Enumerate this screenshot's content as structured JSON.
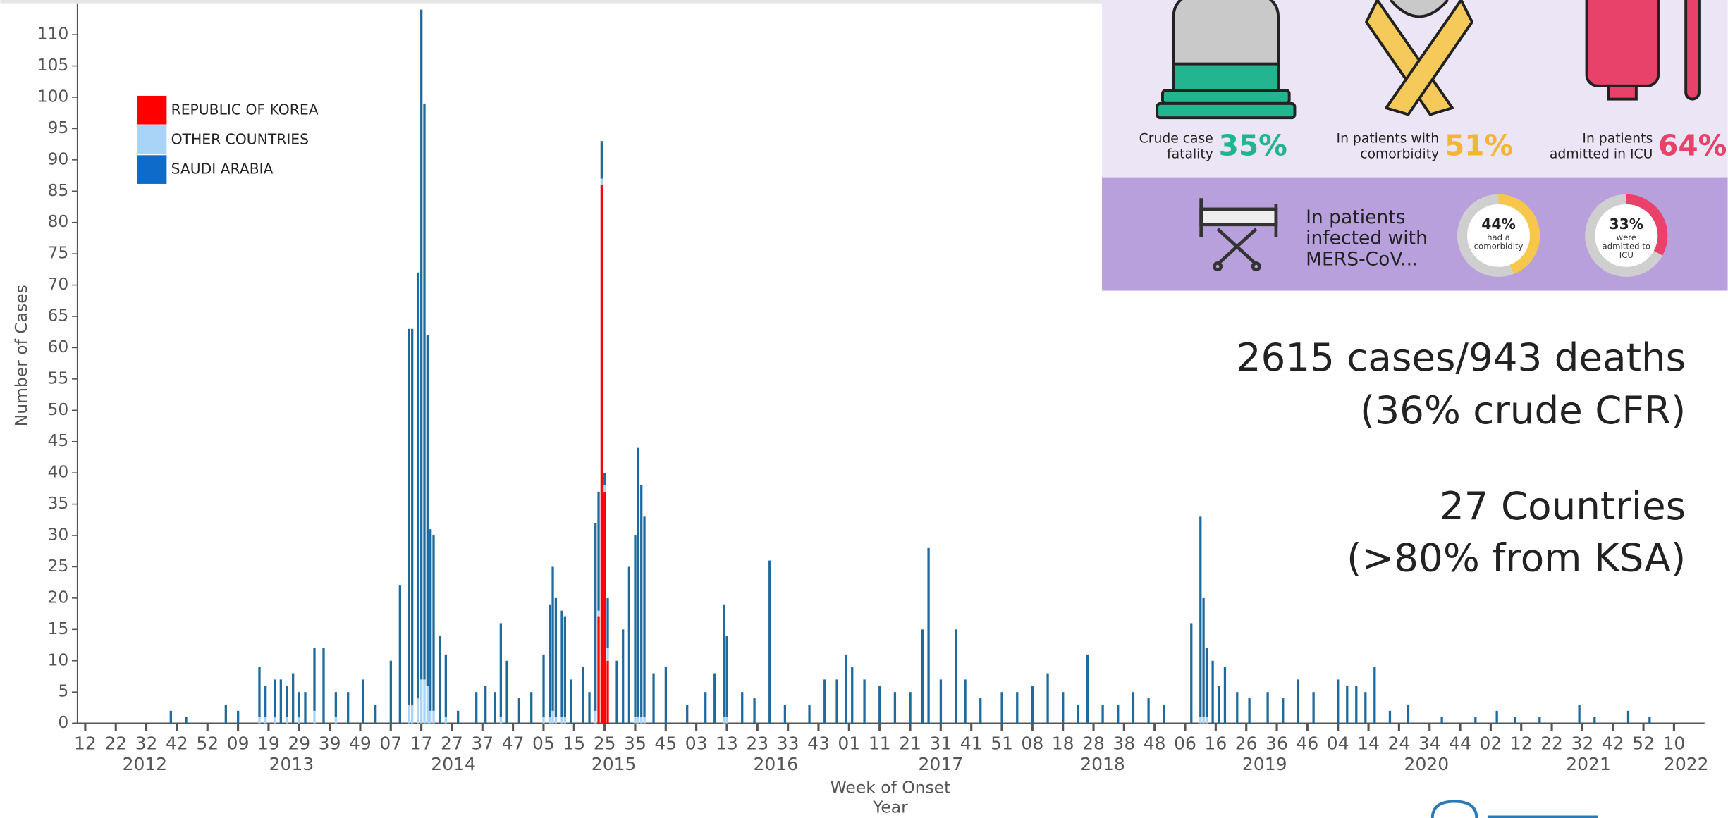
{
  "chart_data": {
    "type": "bar",
    "stacked": true,
    "y_label": "Number of Cases",
    "x_label": "Week of Onset",
    "x_label2": "Year",
    "ylim": [
      0,
      115
    ],
    "yticks": [
      0,
      5,
      10,
      15,
      20,
      25,
      30,
      35,
      40,
      45,
      50,
      55,
      60,
      65,
      70,
      75,
      80,
      85,
      90,
      95,
      100,
      105,
      110
    ],
    "xlim": [
      -4,
      530
    ],
    "xticks": [
      {
        "value": 0,
        "label": "12"
      },
      {
        "value": 10,
        "label": "22"
      },
      {
        "value": 20,
        "label": "32"
      },
      {
        "value": 30,
        "label": "42"
      },
      {
        "value": 40,
        "label": "52"
      },
      {
        "value": 50,
        "label": "09"
      },
      {
        "value": 60,
        "label": "19"
      },
      {
        "value": 70,
        "label": "29"
      },
      {
        "value": 80,
        "label": "39"
      },
      {
        "value": 90,
        "label": "49"
      },
      {
        "value": 100,
        "label": "07"
      },
      {
        "value": 110,
        "label": "17"
      },
      {
        "value": 120,
        "label": "27"
      },
      {
        "value": 130,
        "label": "37"
      },
      {
        "value": 140,
        "label": "47"
      },
      {
        "value": 150,
        "label": "05"
      },
      {
        "value": 160,
        "label": "15"
      },
      {
        "value": 170,
        "label": "25"
      },
      {
        "value": 180,
        "label": "35"
      },
      {
        "value": 190,
        "label": "45"
      },
      {
        "value": 200,
        "label": "03"
      },
      {
        "value": 210,
        "label": "13"
      },
      {
        "value": 220,
        "label": "23"
      },
      {
        "value": 230,
        "label": "33"
      },
      {
        "value": 240,
        "label": "43"
      },
      {
        "value": 250,
        "label": "01"
      },
      {
        "value": 260,
        "label": "11"
      },
      {
        "value": 270,
        "label": "21"
      },
      {
        "value": 280,
        "label": "31"
      },
      {
        "value": 290,
        "label": "41"
      },
      {
        "value": 300,
        "label": "51"
      },
      {
        "value": 310,
        "label": "08"
      },
      {
        "value": 320,
        "label": "18"
      },
      {
        "value": 330,
        "label": "28"
      },
      {
        "value": 340,
        "label": "38"
      },
      {
        "value": 350,
        "label": "48"
      },
      {
        "value": 360,
        "label": "06"
      },
      {
        "value": 370,
        "label": "16"
      },
      {
        "value": 380,
        "label": "26"
      },
      {
        "value": 390,
        "label": "36"
      },
      {
        "value": 400,
        "label": "46"
      },
      {
        "value": 410,
        "label": "04"
      },
      {
        "value": 420,
        "label": "14"
      },
      {
        "value": 430,
        "label": "24"
      },
      {
        "value": 440,
        "label": "34"
      },
      {
        "value": 450,
        "label": "44"
      },
      {
        "value": 460,
        "label": "02"
      },
      {
        "value": 470,
        "label": "12"
      },
      {
        "value": 480,
        "label": "22"
      },
      {
        "value": 490,
        "label": "32"
      },
      {
        "value": 500,
        "label": "42"
      },
      {
        "value": 510,
        "label": "52"
      },
      {
        "value": 520,
        "label": "10"
      }
    ],
    "year_ticks": [
      {
        "value": 19.5,
        "label": "2012"
      },
      {
        "value": 67.5,
        "label": "2013"
      },
      {
        "value": 120.5,
        "label": "2014"
      },
      {
        "value": 173,
        "label": "2015"
      },
      {
        "value": 226,
        "label": "2016"
      },
      {
        "value": 280,
        "label": "2017"
      },
      {
        "value": 333,
        "label": "2018"
      },
      {
        "value": 386,
        "label": "2019"
      },
      {
        "value": 439,
        "label": "2020"
      },
      {
        "value": 492,
        "label": "2021"
      },
      {
        "value": 524,
        "label": "2022"
      }
    ],
    "x": [
      28,
      33,
      46,
      50,
      57,
      59,
      62,
      64,
      66,
      68,
      70,
      72,
      75,
      78,
      82,
      86,
      91,
      95,
      100,
      103,
      106,
      107,
      109,
      110,
      111,
      112,
      113,
      114,
      116,
      118,
      122,
      128,
      131,
      134,
      136,
      138,
      142,
      146,
      150,
      152,
      153,
      154,
      156,
      157,
      159,
      163,
      165,
      167,
      168,
      169,
      170,
      171,
      174,
      176,
      178,
      180,
      181,
      182,
      183,
      186,
      190,
      197,
      203,
      206,
      209,
      210,
      215,
      219,
      224,
      229,
      237,
      242,
      246,
      249,
      251,
      255,
      260,
      265,
      270,
      274,
      276,
      280,
      285,
      288,
      293,
      300,
      305,
      310,
      315,
      320,
      325,
      328,
      333,
      338,
      343,
      348,
      353,
      362,
      365,
      366,
      367,
      369,
      371,
      373,
      377,
      381,
      387,
      392,
      397,
      402,
      410,
      413,
      416,
      419,
      422,
      427,
      433,
      444,
      455,
      462,
      468,
      476,
      489,
      494,
      505,
      512
    ],
    "series": [
      {
        "name": "REPUBLIC OF KOREA",
        "color": "#ff0000",
        "values": [
          0,
          0,
          0,
          0,
          0,
          0,
          0,
          0,
          0,
          0,
          0,
          0,
          0,
          0,
          0,
          0,
          0,
          0,
          0,
          0,
          0,
          0,
          0,
          0,
          0,
          0,
          0,
          0,
          0,
          0,
          0,
          0,
          0,
          0,
          0,
          0,
          0,
          0,
          0,
          0,
          0,
          0,
          0,
          0,
          0,
          0,
          0,
          0,
          17,
          86,
          37,
          10,
          0,
          0,
          0,
          0,
          0,
          0,
          0,
          0,
          0,
          0,
          0,
          0,
          0,
          0,
          0,
          0,
          0,
          0,
          0,
          0,
          0,
          0,
          0,
          0,
          0,
          0,
          0,
          0,
          0,
          0,
          0,
          0,
          0,
          0,
          0,
          0,
          0,
          0,
          0,
          0,
          0,
          0,
          0,
          0,
          0,
          0,
          0,
          0,
          0,
          0,
          0,
          0,
          0,
          0,
          0,
          0,
          0,
          0,
          0,
          0,
          0,
          0,
          0,
          0,
          0,
          0,
          0,
          0,
          0,
          0,
          0,
          0,
          0,
          0
        ]
      },
      {
        "name": "OTHER COUNTRIES",
        "color": "#a9d4f7",
        "values": [
          0,
          0,
          0,
          0,
          1,
          1,
          1,
          0,
          1,
          0,
          1,
          0,
          2,
          0,
          1,
          0,
          0,
          0,
          0,
          0,
          3,
          3,
          4,
          7,
          7,
          6,
          2,
          2,
          0,
          1,
          0,
          0,
          0,
          0,
          1,
          0,
          0,
          0,
          1,
          1,
          2,
          1,
          1,
          1,
          0,
          0,
          0,
          2,
          1,
          1,
          1,
          2,
          0,
          0,
          0,
          1,
          1,
          1,
          1,
          0,
          0,
          0,
          0,
          0,
          1,
          1,
          0,
          0,
          0,
          0,
          0,
          0,
          0,
          0,
          0,
          0,
          0,
          0,
          0,
          0,
          0,
          0,
          0,
          0,
          0,
          0,
          0,
          0,
          0,
          0,
          0,
          0,
          0,
          0,
          0,
          0,
          0,
          0,
          1,
          1,
          1,
          0,
          0,
          0,
          0,
          0,
          0,
          0,
          0,
          0,
          0,
          0,
          0,
          0,
          0,
          0,
          0,
          0,
          0,
          0,
          0,
          0,
          0,
          0,
          0,
          0
        ]
      },
      {
        "name": "SAUDI ARABIA",
        "color": "#1f6a9c",
        "values": [
          2,
          1,
          3,
          2,
          8,
          5,
          6,
          7,
          5,
          8,
          4,
          5,
          10,
          12,
          4,
          5,
          7,
          3,
          10,
          22,
          60,
          60,
          68,
          107,
          92,
          56,
          29,
          28,
          14,
          10,
          2,
          5,
          6,
          5,
          15,
          10,
          4,
          5,
          10,
          18,
          23,
          19,
          17,
          16,
          7,
          9,
          5,
          30,
          19,
          6,
          2,
          8,
          10,
          15,
          25,
          29,
          43,
          37,
          32,
          8,
          9,
          3,
          5,
          8,
          18,
          13,
          5,
          4,
          26,
          3,
          3,
          7,
          7,
          11,
          9,
          7,
          6,
          5,
          5,
          15,
          28,
          7,
          15,
          7,
          4,
          5,
          5,
          6,
          8,
          5,
          3,
          11,
          3,
          3,
          5,
          4,
          3,
          16,
          32,
          19,
          11,
          10,
          6,
          9,
          5,
          4,
          5,
          4,
          7,
          5,
          7,
          6,
          6,
          5,
          9,
          2,
          3,
          1,
          1,
          2,
          1,
          1,
          3,
          1,
          2,
          1
        ]
      }
    ]
  },
  "infographic": {
    "stats": [
      {
        "lines": [
          "Crude case",
          "fatality"
        ],
        "value": "35%",
        "color": "#1fb58f"
      },
      {
        "lines": [
          "In patients with",
          "comorbidity"
        ],
        "value": "51%",
        "color": "#f2b632"
      },
      {
        "lines": [
          "In patients",
          "admitted in ICU"
        ],
        "value": "64%",
        "color": "#e8426a"
      }
    ],
    "summary_lines": [
      "In patients",
      "infected with",
      "MERS-CoV..."
    ],
    "donuts": [
      {
        "value": 44,
        "label": "44%",
        "lines": [
          "had a",
          "comorbidity"
        ],
        "color": "#f6c74a"
      },
      {
        "value": 33,
        "label": "33%",
        "lines": [
          "were",
          "admitted to",
          "ICU"
        ],
        "color": "#e8426a"
      }
    ]
  },
  "summary": [
    "2615 cases/943 deaths",
    "(36% crude CFR)",
    "27 Countries",
    "(>80% from KSA)"
  ]
}
